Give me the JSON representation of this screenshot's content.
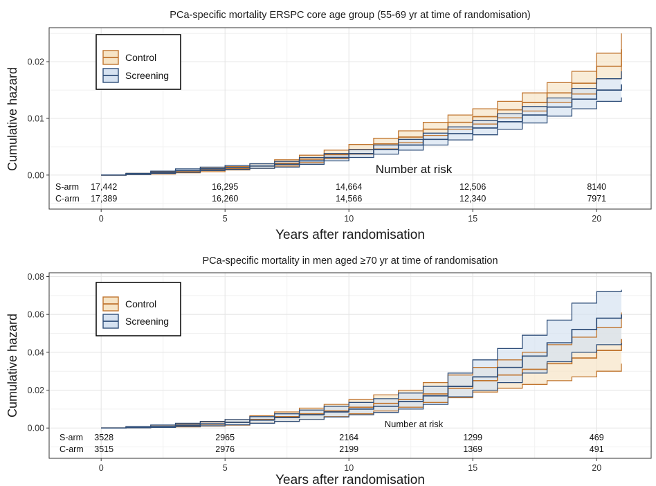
{
  "colors": {
    "control_line": "#C0752F",
    "control_fill": "#F6E4C6",
    "screening_line": "#2F4E79",
    "screening_fill": "#D6E2F1",
    "grid_major": "#E5E5E5",
    "grid_minor": "#F1F1F1",
    "panel_border": "#333333"
  },
  "chart_data": [
    {
      "type": "line",
      "subtype": "step cumulative hazard with confidence bands",
      "title": "PCa-specific mortality ERSPC core age group (55-69 yr at time of randomisation)",
      "xlabel": "Years after randomisation",
      "ylabel": "Cumulative hazard",
      "xlim": [
        -2.1,
        22.2
      ],
      "ylim": [
        -0.006,
        0.026
      ],
      "xticks": [
        0,
        5,
        10,
        15,
        20
      ],
      "xtick_labels": [
        "0",
        "5",
        "10",
        "15",
        "20"
      ],
      "yticks": [
        0,
        0.01,
        0.02
      ],
      "ytick_labels": [
        "0.00",
        "0.01",
        "0.02"
      ],
      "grid": true,
      "legend_position": "top-left",
      "series": [
        {
          "name": "Control",
          "color": "#C0752F",
          "x": [
            0,
            1,
            2,
            3,
            4,
            5,
            6,
            7,
            8,
            9,
            10,
            11,
            12,
            13,
            14,
            15,
            16,
            17,
            18,
            19,
            20,
            21
          ],
          "y": [
            0,
            0.0002,
            0.0004,
            0.0006,
            0.0009,
            0.0012,
            0.0016,
            0.0021,
            0.0028,
            0.0036,
            0.0045,
            0.0055,
            0.0067,
            0.0081,
            0.0093,
            0.0103,
            0.0115,
            0.0128,
            0.0145,
            0.0162,
            0.0192,
            0.0222
          ],
          "lower": [
            0,
            0.0001,
            0.0002,
            0.0004,
            0.0006,
            0.0009,
            0.0012,
            0.0016,
            0.0022,
            0.0029,
            0.0037,
            0.0046,
            0.0057,
            0.007,
            0.0081,
            0.009,
            0.0101,
            0.0113,
            0.0128,
            0.0143,
            0.017,
            0.0196
          ],
          "upper": [
            0,
            0.0003,
            0.0006,
            0.0008,
            0.0012,
            0.0015,
            0.002,
            0.0027,
            0.0035,
            0.0044,
            0.0054,
            0.0065,
            0.0078,
            0.0093,
            0.0106,
            0.0117,
            0.013,
            0.0145,
            0.0163,
            0.0183,
            0.0215,
            0.025
          ]
        },
        {
          "name": "Screening",
          "color": "#2F4E79",
          "x": [
            0,
            1,
            2,
            3,
            4,
            5,
            6,
            7,
            8,
            9,
            10,
            11,
            12,
            13,
            14,
            15,
            16,
            17,
            18,
            19,
            20,
            21
          ],
          "y": [
            0,
            0.0002,
            0.0005,
            0.0008,
            0.0011,
            0.0013,
            0.0016,
            0.0019,
            0.0025,
            0.0031,
            0.0038,
            0.0045,
            0.0053,
            0.0063,
            0.0073,
            0.0083,
            0.0094,
            0.0106,
            0.012,
            0.0134,
            0.015,
            0.016
          ],
          "lower": [
            0,
            0.0001,
            0.0003,
            0.0005,
            0.0008,
            0.001,
            0.0012,
            0.0014,
            0.0019,
            0.0025,
            0.0031,
            0.0037,
            0.0044,
            0.0053,
            0.0062,
            0.0071,
            0.0081,
            0.0092,
            0.0104,
            0.0117,
            0.013,
            0.0137
          ],
          "upper": [
            0,
            0.0003,
            0.0007,
            0.0011,
            0.0014,
            0.0017,
            0.002,
            0.0024,
            0.0031,
            0.0038,
            0.0045,
            0.0053,
            0.0063,
            0.0074,
            0.0085,
            0.0096,
            0.0108,
            0.0121,
            0.0136,
            0.0153,
            0.017,
            0.0183
          ]
        }
      ],
      "risk_table": {
        "title": "Number at risk",
        "times": [
          0,
          5,
          10,
          15,
          20
        ],
        "rows": [
          {
            "label": "S-arm",
            "values": [
              "17,442",
              "16,295",
              "14,664",
              "12,506",
              "8140"
            ]
          },
          {
            "label": "C-arm",
            "values": [
              "17,389",
              "16,260",
              "14,566",
              "12,340",
              "7971"
            ]
          }
        ]
      }
    },
    {
      "type": "line",
      "subtype": "step cumulative hazard with confidence bands",
      "title": "PCa-specific mortality in men aged ≥70 yr at time of randomisation",
      "xlabel": "Years after randomisation",
      "ylabel": "Cumulative hazard",
      "xlim": [
        -2.1,
        22.2
      ],
      "ylim": [
        -0.016,
        0.082
      ],
      "xticks": [
        0,
        5,
        10,
        15,
        20
      ],
      "xtick_labels": [
        "0",
        "5",
        "10",
        "15",
        "20"
      ],
      "yticks": [
        0,
        0.02,
        0.04,
        0.06,
        0.08
      ],
      "ytick_labels": [
        "0.00",
        "0.02",
        "0.04",
        "0.06",
        "0.08"
      ],
      "grid": true,
      "legend_position": "top-left",
      "series": [
        {
          "name": "Control",
          "color": "#C0752F",
          "x": [
            0,
            1,
            2,
            3,
            4,
            5,
            6,
            7,
            8,
            9,
            10,
            11,
            12,
            13,
            14,
            15,
            16,
            17,
            18,
            19,
            20,
            21
          ],
          "y": [
            0,
            0.0003,
            0.0007,
            0.0012,
            0.002,
            0.003,
            0.0045,
            0.006,
            0.0075,
            0.009,
            0.011,
            0.013,
            0.015,
            0.018,
            0.021,
            0.025,
            0.028,
            0.031,
            0.034,
            0.037,
            0.041,
            0.047
          ],
          "lower": [
            0,
            0.0001,
            0.0003,
            0.0006,
            0.001,
            0.0015,
            0.0025,
            0.0035,
            0.0045,
            0.006,
            0.0075,
            0.009,
            0.011,
            0.0135,
            0.016,
            0.019,
            0.021,
            0.023,
            0.025,
            0.027,
            0.03,
            0.034
          ],
          "upper": [
            0,
            0.0008,
            0.0015,
            0.0022,
            0.0032,
            0.0045,
            0.0065,
            0.0085,
            0.0105,
            0.0125,
            0.015,
            0.0175,
            0.02,
            0.024,
            0.028,
            0.032,
            0.036,
            0.04,
            0.044,
            0.048,
            0.053,
            0.061
          ]
        },
        {
          "name": "Screening",
          "color": "#2F4E79",
          "x": [
            0,
            1,
            2,
            3,
            4,
            5,
            6,
            7,
            8,
            9,
            10,
            11,
            12,
            13,
            14,
            15,
            16,
            17,
            18,
            19,
            20,
            21
          ],
          "y": [
            0,
            0.0003,
            0.0008,
            0.0015,
            0.0022,
            0.003,
            0.0042,
            0.0055,
            0.007,
            0.0085,
            0.01,
            0.0115,
            0.014,
            0.017,
            0.022,
            0.027,
            0.032,
            0.038,
            0.045,
            0.052,
            0.058,
            0.06
          ],
          "lower": [
            0,
            0.0001,
            0.0003,
            0.0007,
            0.0012,
            0.0017,
            0.0025,
            0.0035,
            0.0045,
            0.0058,
            0.007,
            0.0082,
            0.01,
            0.0125,
            0.0165,
            0.02,
            0.024,
            0.029,
            0.035,
            0.04,
            0.044,
            0.045
          ],
          "upper": [
            0,
            0.0008,
            0.0016,
            0.0025,
            0.0035,
            0.0045,
            0.006,
            0.0075,
            0.0095,
            0.0115,
            0.0135,
            0.0155,
            0.0185,
            0.022,
            0.029,
            0.036,
            0.042,
            0.049,
            0.057,
            0.066,
            0.072,
            0.073
          ]
        }
      ],
      "risk_table": {
        "title": "Number at risk",
        "times": [
          0,
          5,
          10,
          15,
          20
        ],
        "rows": [
          {
            "label": "S-arm",
            "values": [
              "3528",
              "2965",
              "2164",
              "1299",
              "469"
            ]
          },
          {
            "label": "C-arm",
            "values": [
              "3515",
              "2976",
              "2199",
              "1369",
              "491"
            ]
          }
        ]
      }
    }
  ]
}
